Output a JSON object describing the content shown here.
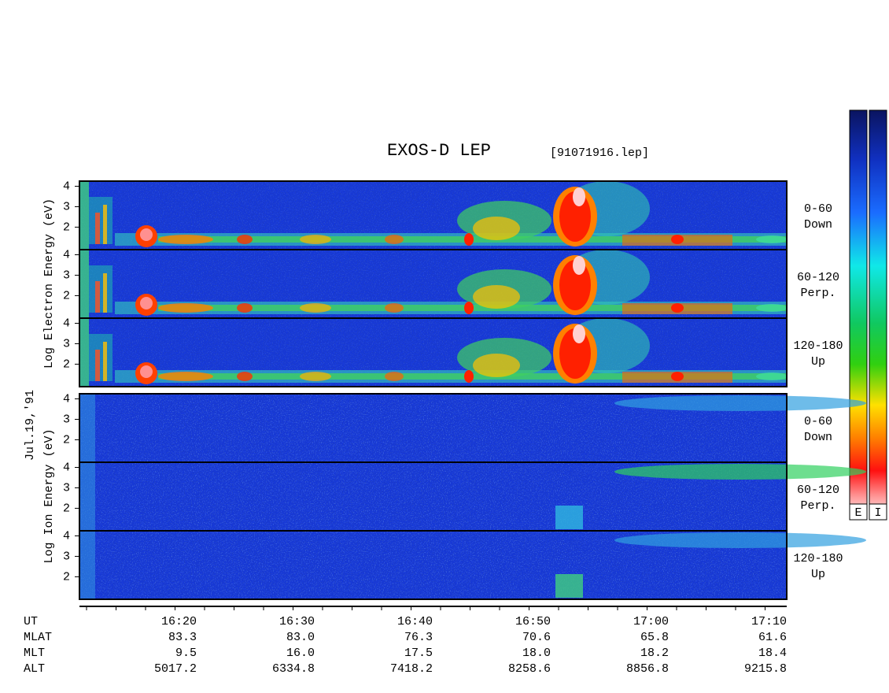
{
  "chart_data": {
    "type": "spectrogram",
    "title": "EXOS-D LEP",
    "subtitle": "[91071916.lep]",
    "date_label": "Jul.19,'91",
    "electron_ylabel": "Log Electron Energy (eV)",
    "ion_ylabel": "Log Ion Energy (eV)",
    "ylim": [
      0.9,
      4.25
    ],
    "yticks": [
      2,
      3,
      4
    ],
    "panels": [
      {
        "species": "electron",
        "label": [
          "0-60",
          "Down"
        ]
      },
      {
        "species": "electron",
        "label": [
          "60-120",
          "Perp."
        ]
      },
      {
        "species": "electron",
        "label": [
          "120-180",
          "Up"
        ]
      },
      {
        "species": "ion",
        "label": [
          "0-60",
          "Down"
        ]
      },
      {
        "species": "ion",
        "label": [
          "60-120",
          "Perp."
        ]
      },
      {
        "species": "ion",
        "label": [
          "120-180",
          "Up"
        ]
      }
    ],
    "orbit_table": {
      "rows": [
        {
          "label": "UT",
          "values": [
            "16:20",
            "16:30",
            "16:40",
            "16:50",
            "17:00",
            "17:10"
          ]
        },
        {
          "label": "MLAT",
          "values": [
            "83.3",
            "83.0",
            "76.3",
            "70.6",
            "65.8",
            "61.6"
          ]
        },
        {
          "label": "MLT",
          "values": [
            "9.5",
            "16.0",
            "17.5",
            "18.0",
            "18.2",
            "18.4"
          ]
        },
        {
          "label": "ALT",
          "values": [
            "5017.2",
            "6334.8",
            "7418.2",
            "8258.6",
            "8856.8",
            "9215.8"
          ]
        }
      ]
    },
    "colorbar_labels": [
      "E",
      "I"
    ]
  }
}
